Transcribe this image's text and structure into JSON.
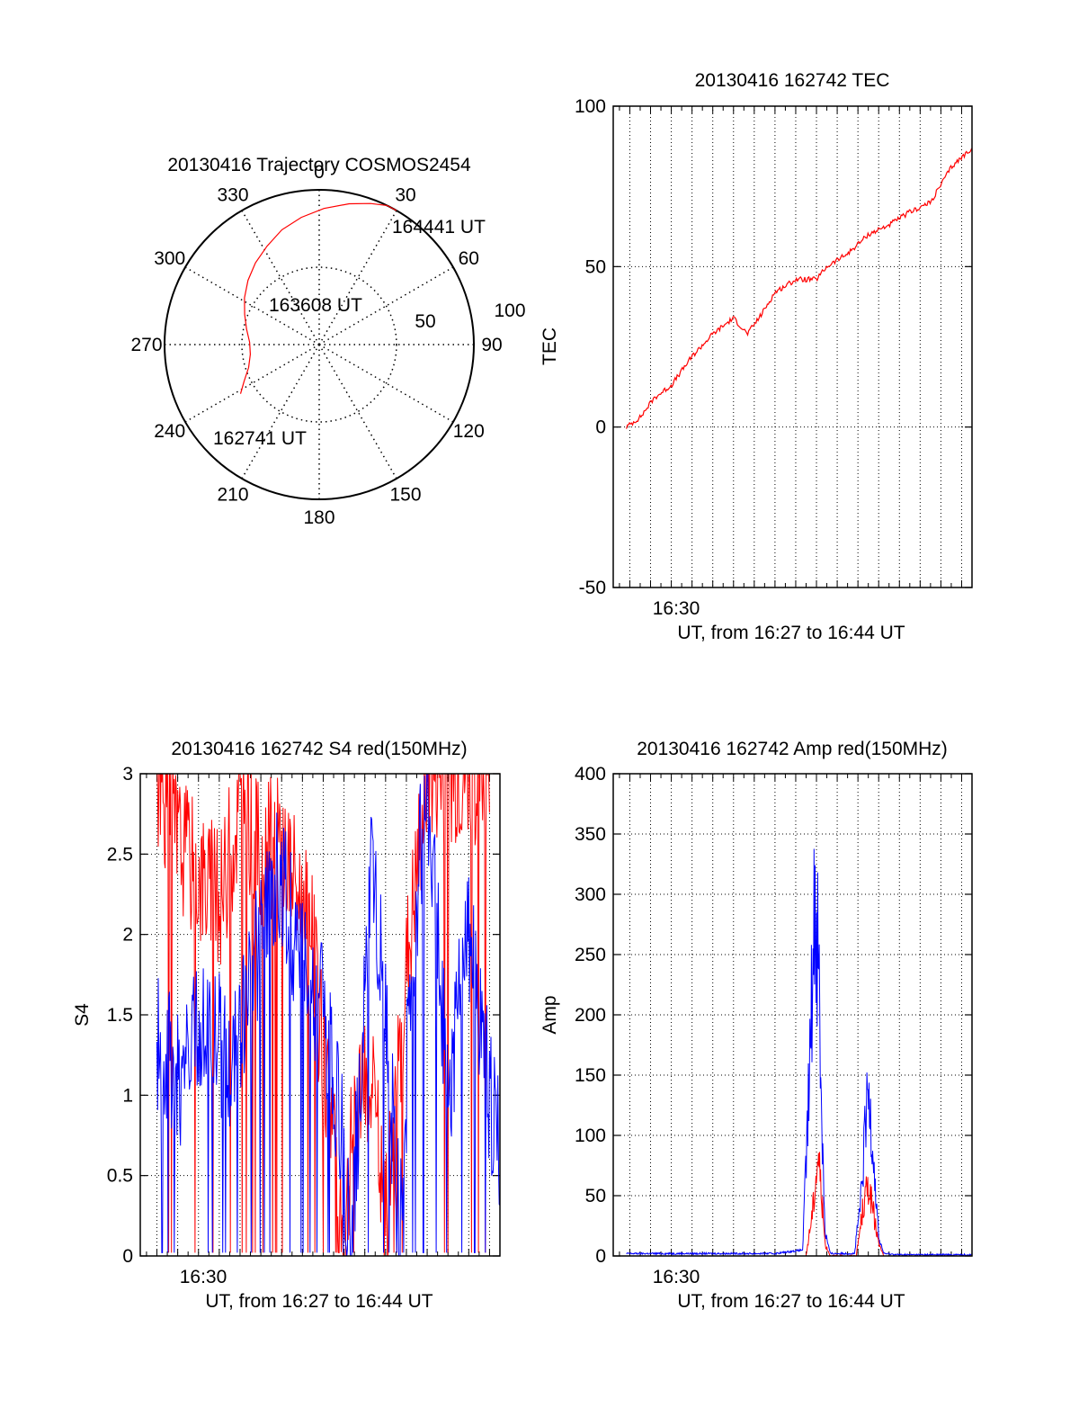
{
  "chart_data": [
    {
      "id": "polar",
      "type": "polar",
      "title": "20130416 Trajectory COSMOS2454",
      "rlim": [
        0,
        100
      ],
      "radial_labels": [
        "50",
        "100"
      ],
      "azimuth_labels": [
        "0",
        "30",
        "60",
        "90",
        "120",
        "150",
        "180",
        "210",
        "240",
        "270",
        "300",
        "330"
      ],
      "annotations": [
        "164441 UT",
        "163608 UT",
        "162741 UT"
      ],
      "trajectory": {
        "color": "#ff0000",
        "az": [
          238,
          244,
          252,
          262,
          272,
          282,
          292,
          302,
          312,
          322,
          332,
          342,
          352,
          2,
          12,
          20,
          26,
          30
        ],
        "r": [
          60,
          54,
          48,
          45,
          45,
          48,
          52,
          57,
          62,
          67,
          72,
          78,
          83,
          88,
          93,
          97,
          100,
          100
        ]
      }
    },
    {
      "id": "tec",
      "type": "line",
      "title": "20130416 162742 TEC",
      "xlabel": "UT, from 16:27 to 16:44 UT",
      "ylabel": "TEC",
      "xlim": [
        "16:28:12",
        "16:45:30"
      ],
      "ylim": [
        -50,
        100
      ],
      "yticks": [
        "100",
        "50",
        "0",
        "-50"
      ],
      "xtick_label": "16:30",
      "grid": true,
      "series": [
        {
          "color": "#ff0000",
          "x": [
            "16:28:50",
            "16:29:30",
            "16:30:10",
            "16:31:00",
            "16:32:00",
            "16:33:00",
            "16:34:00",
            "16:34:40",
            "16:35:20",
            "16:36:00",
            "16:37:00",
            "16:38:00",
            "16:38:30",
            "16:39:30",
            "16:40:30",
            "16:41:30",
            "16:42:30",
            "16:43:30",
            "16:44:30",
            "16:45:30"
          ],
          "y": [
            0,
            3,
            9,
            13,
            22,
            29,
            34,
            29,
            35,
            42,
            46,
            46,
            50,
            54,
            60,
            63,
            67,
            70,
            81,
            87
          ]
        }
      ]
    },
    {
      "id": "s4",
      "type": "line",
      "title": "20130416 162742 S4 red(150MHz)",
      "xlabel": "UT, from 16:27 to 16:44 UT",
      "ylabel": "S4",
      "xlim": [
        "16:28:12",
        "16:45:30"
      ],
      "ylim": [
        0,
        3
      ],
      "yticks": [
        "3",
        "2.5",
        "2",
        "1.5",
        "1",
        "0.5",
        "0"
      ],
      "xtick_label": "16:30",
      "grid": true,
      "series": [
        {
          "color": "#ff0000",
          "x": [
            "16:29:00",
            "16:30:00",
            "16:31:00",
            "16:32:00",
            "16:33:00",
            "16:34:00",
            "16:35:00",
            "16:36:00",
            "16:36:30",
            "16:37:00",
            "16:37:30",
            "16:38:00",
            "16:38:30",
            "16:39:00",
            "16:39:30",
            "16:40:00",
            "16:41:00",
            "16:42:00",
            "16:43:00",
            "16:44:00",
            "16:45:00"
          ],
          "y": [
            3,
            2.6,
            2.4,
            2.2,
            2.8,
            2.5,
            2.6,
            2.2,
            1.9,
            1.2,
            0.9,
            0.1,
            0.9,
            1.0,
            0.9,
            0.2,
            1.8,
            3,
            3,
            3,
            3
          ]
        },
        {
          "color": "#0000ff",
          "x": [
            "16:29:00",
            "16:29:40",
            "16:30:20",
            "16:31:00",
            "16:31:40",
            "16:32:20",
            "16:33:00",
            "16:33:40",
            "16:34:20",
            "16:35:00",
            "16:35:40",
            "16:36:20",
            "16:37:00",
            "16:37:40",
            "16:38:20",
            "16:38:50",
            "16:39:20",
            "16:40:00",
            "16:40:40",
            "16:41:20",
            "16:42:00",
            "16:43:00",
            "16:44:00",
            "16:45:00",
            "16:45:30"
          ],
          "y": [
            1.3,
            1.2,
            1.1,
            1.4,
            1.5,
            1.2,
            1.4,
            1.8,
            2.2,
            2.4,
            1.9,
            1.6,
            1.5,
            1.0,
            0.15,
            1.2,
            2.4,
            1.5,
            0.15,
            2.0,
            3.0,
            1.0,
            2.0,
            1.0,
            0.6
          ]
        }
      ]
    },
    {
      "id": "amp",
      "type": "line",
      "title": "20130416 162742 Amp red(150MHz)",
      "xlabel": "UT, from 16:27 to 16:44 UT",
      "ylabel": "Amp",
      "xlim": [
        "16:28:12",
        "16:45:30"
      ],
      "ylim": [
        0,
        400
      ],
      "yticks": [
        "400",
        "350",
        "300",
        "250",
        "200",
        "150",
        "100",
        "50",
        "0"
      ],
      "xtick_label": "16:30",
      "grid": true,
      "series": [
        {
          "color": "#0000ff",
          "x": [
            "16:28:50",
            "16:32:00",
            "16:36:00",
            "16:37:20",
            "16:37:40",
            "16:37:55",
            "16:38:05",
            "16:38:15",
            "16:38:25",
            "16:38:40",
            "16:39:50",
            "16:40:10",
            "16:40:20",
            "16:40:30",
            "16:40:40",
            "16:40:50",
            "16:41:00",
            "16:41:15",
            "16:42:00",
            "16:45:30"
          ],
          "y": [
            2,
            2,
            2,
            5,
            150,
            300,
            260,
            120,
            20,
            2,
            2,
            50,
            100,
            135,
            110,
            60,
            15,
            2,
            1,
            1
          ]
        },
        {
          "color": "#ff0000",
          "x": [
            "16:37:30",
            "16:37:50",
            "16:38:05",
            "16:38:15",
            "16:38:25",
            "16:38:40",
            "16:39:55",
            "16:40:15",
            "16:40:30",
            "16:40:45",
            "16:41:00",
            "16:41:15"
          ],
          "y": [
            0,
            40,
            85,
            50,
            10,
            0,
            0,
            40,
            60,
            35,
            10,
            0
          ]
        }
      ]
    }
  ]
}
